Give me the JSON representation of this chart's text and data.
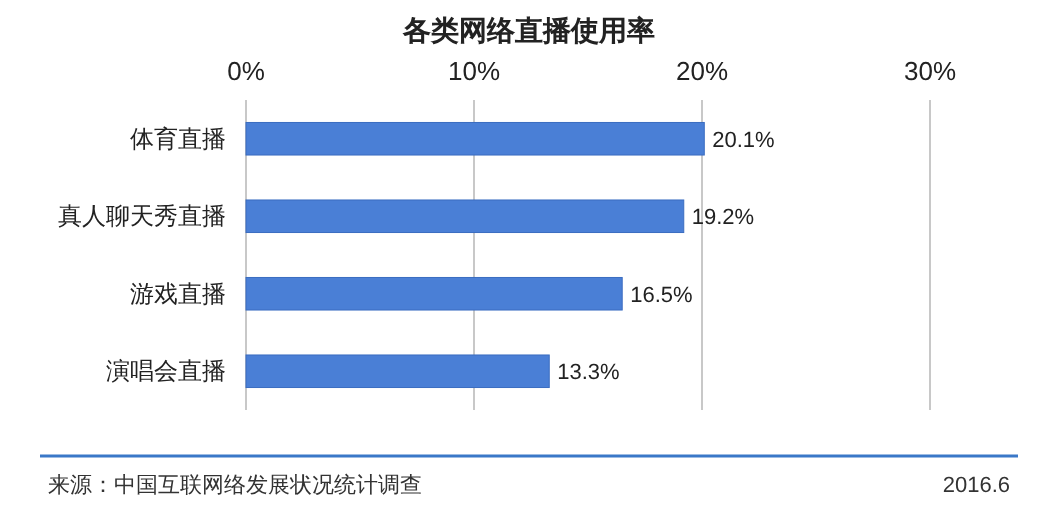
{
  "chart_data": {
    "type": "bar",
    "orientation": "horizontal",
    "title": "各类网络直播使用率",
    "categories": [
      "体育直播",
      "真人聊天秀直播",
      "游戏直播",
      "演唱会直播"
    ],
    "values": [
      20.1,
      19.2,
      16.5,
      13.3
    ],
    "value_labels": [
      "20.1%",
      "19.2%",
      "16.5%",
      "13.3%"
    ],
    "color": "#4a7fd6",
    "xlim": [
      0,
      30
    ],
    "xticks": [
      {
        "value": 0,
        "label": "0%"
      },
      {
        "value": 10,
        "label": "10%"
      },
      {
        "value": 20,
        "label": "20%"
      },
      {
        "value": 30,
        "label": "30%"
      }
    ],
    "grid": "x",
    "annotations": [
      "来源：中国互联网络发展状况统计调查",
      "2016.6"
    ]
  }
}
